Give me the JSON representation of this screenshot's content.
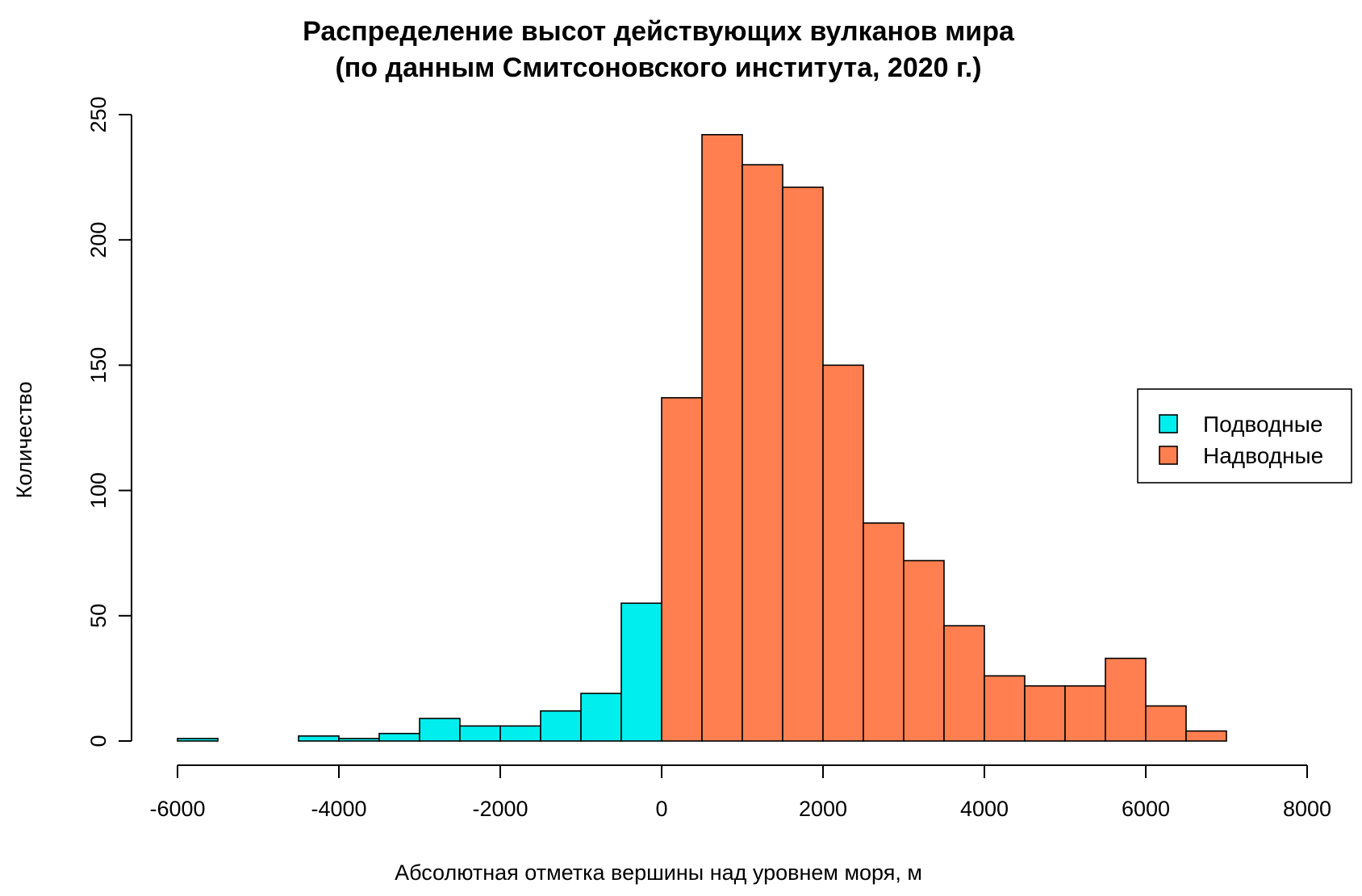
{
  "chart_data": {
    "type": "bar",
    "title": "Распределение высот действующих вулканов мира",
    "subtitle": "(по данным Смитсоновского института, 2020 г.)",
    "xlabel": "Абсолютная отметка вершины над уровнем моря, м",
    "ylabel": "Количество",
    "xlim": [
      -6000,
      8000
    ],
    "ylim": [
      0,
      250
    ],
    "x_ticks": [
      -6000,
      -4000,
      -2000,
      0,
      2000,
      4000,
      6000,
      8000
    ],
    "y_ticks": [
      0,
      50,
      100,
      150,
      200,
      250
    ],
    "legend_position": "right",
    "series": [
      {
        "name": "Подводные",
        "color": "#00EEEE",
        "bins": [
          {
            "from": -6000,
            "to": -5500,
            "value": 1
          },
          {
            "from": -5500,
            "to": -5000,
            "value": 0
          },
          {
            "from": -5000,
            "to": -4500,
            "value": 0
          },
          {
            "from": -4500,
            "to": -4000,
            "value": 2
          },
          {
            "from": -4000,
            "to": -3500,
            "value": 1
          },
          {
            "from": -3500,
            "to": -3000,
            "value": 3
          },
          {
            "from": -3000,
            "to": -2500,
            "value": 9
          },
          {
            "from": -2500,
            "to": -2000,
            "value": 6
          },
          {
            "from": -2000,
            "to": -1500,
            "value": 6
          },
          {
            "from": -1500,
            "to": -1000,
            "value": 12
          },
          {
            "from": -1000,
            "to": -500,
            "value": 19
          },
          {
            "from": -500,
            "to": 0,
            "value": 55
          }
        ]
      },
      {
        "name": "Надводные",
        "color": "#FF7F50",
        "bins": [
          {
            "from": 0,
            "to": 500,
            "value": 137
          },
          {
            "from": 500,
            "to": 1000,
            "value": 242
          },
          {
            "from": 1000,
            "to": 1500,
            "value": 230
          },
          {
            "from": 1500,
            "to": 2000,
            "value": 221
          },
          {
            "from": 2000,
            "to": 2500,
            "value": 150
          },
          {
            "from": 2500,
            "to": 3000,
            "value": 87
          },
          {
            "from": 3000,
            "to": 3500,
            "value": 72
          },
          {
            "from": 3500,
            "to": 4000,
            "value": 46
          },
          {
            "from": 4000,
            "to": 4500,
            "value": 26
          },
          {
            "from": 4500,
            "to": 5000,
            "value": 22
          },
          {
            "from": 5000,
            "to": 5500,
            "value": 22
          },
          {
            "from": 5500,
            "to": 6000,
            "value": 33
          },
          {
            "from": 6000,
            "to": 6500,
            "value": 14
          },
          {
            "from": 6500,
            "to": 7000,
            "value": 4
          }
        ]
      }
    ]
  }
}
